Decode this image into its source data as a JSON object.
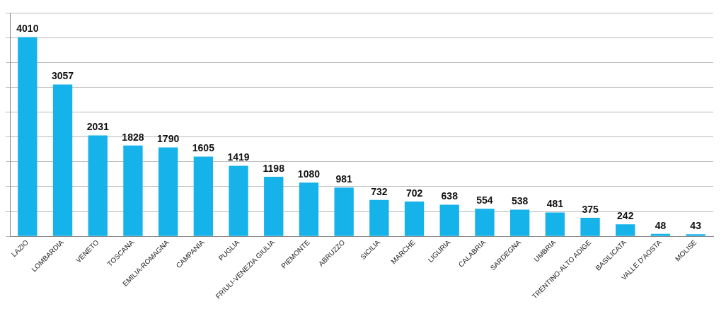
{
  "chart_data": {
    "type": "bar",
    "categories": [
      "LAZIO",
      "LOMBARDIA",
      "VENETO",
      "TOSCANA",
      "EMILIA-ROMAGNA",
      "CAMPANIA",
      "PUGLIA",
      "FRIULI-VENEZIA GIULIA",
      "PIEMONTE",
      "ABRUZZO",
      "SICILIA",
      "MARCHE",
      "LIGURIA",
      "CALABRIA",
      "SARDEGNA",
      "UMBRIA",
      "TRENTINO-ALTO ADIGE",
      "BASILICATA",
      "VALLE D'AOSTA",
      "MOLISE"
    ],
    "values": [
      4010,
      3057,
      2031,
      1828,
      1790,
      1605,
      1419,
      1198,
      1080,
      981,
      732,
      702,
      638,
      554,
      538,
      481,
      375,
      242,
      48,
      43
    ],
    "color": "#16b2ea",
    "ylim": [
      0,
      4500
    ],
    "yticks": [
      {
        "value": 0,
        "label": null
      },
      {
        "value": 500,
        "label": null
      },
      {
        "value": 1000,
        "label": null
      },
      {
        "value": 1500,
        "label": null
      },
      {
        "value": 2000,
        "label": null
      },
      {
        "value": 2500,
        "label": null
      },
      {
        "value": 3000,
        "label": null
      },
      {
        "value": 3500,
        "label": null
      },
      {
        "value": 4000,
        "label": null
      },
      {
        "value": 4500,
        "label": null
      }
    ],
    "tick_labels": "x",
    "grid": "y",
    "data_labels": true
  }
}
